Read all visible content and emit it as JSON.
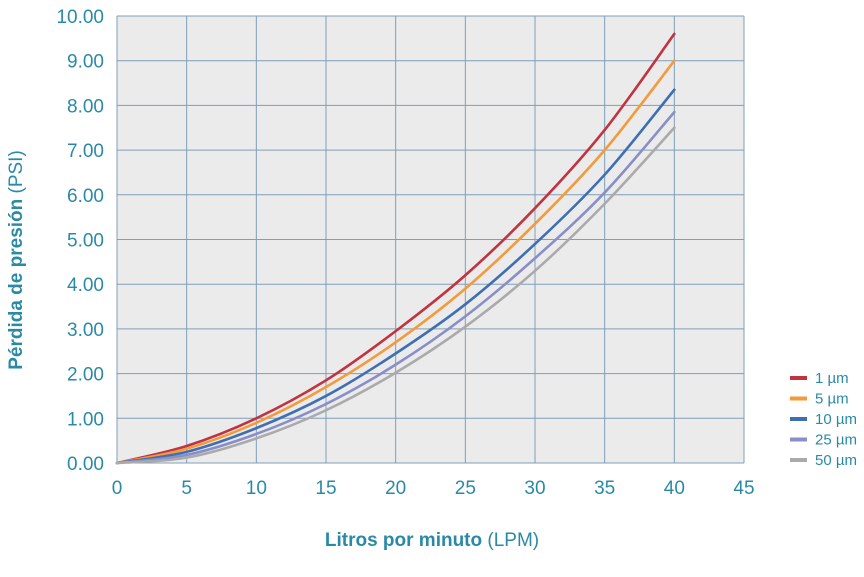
{
  "chart_data": {
    "type": "line",
    "title": "",
    "xlabel_bold": "Litros por minuto",
    "xlabel_unit": " (LPM)",
    "ylabel_bold": "Pérdida de presión",
    "ylabel_unit": " (PSI)",
    "xlim": [
      0,
      45
    ],
    "ylim": [
      0,
      10
    ],
    "xticks": [
      "0",
      "5",
      "10",
      "15",
      "20",
      "25",
      "30",
      "35",
      "40",
      "45"
    ],
    "yticks": [
      "0.00",
      "1.00",
      "2.00",
      "3.00",
      "4.00",
      "5.00",
      "6.00",
      "7.00",
      "8.00",
      "9.00",
      "10.00"
    ],
    "grid": true,
    "legend_position": "bottom-right",
    "x": [
      0,
      5,
      10,
      15,
      20,
      25,
      30,
      35,
      40
    ],
    "series": [
      {
        "name": "1 µm",
        "color": "#c0333f",
        "values": [
          0.0,
          0.38,
          1.0,
          1.85,
          2.95,
          4.2,
          5.7,
          7.45,
          9.6
        ]
      },
      {
        "name": "5 µm",
        "color": "#f39a3c",
        "values": [
          0.0,
          0.32,
          0.9,
          1.7,
          2.7,
          3.9,
          5.35,
          7.0,
          9.0
        ]
      },
      {
        "name": "10 µm",
        "color": "#3f6fb3",
        "values": [
          0.0,
          0.25,
          0.78,
          1.5,
          2.45,
          3.55,
          4.9,
          6.45,
          8.35
        ]
      },
      {
        "name": "25 µm",
        "color": "#8a8ec8",
        "values": [
          0.0,
          0.18,
          0.65,
          1.32,
          2.2,
          3.28,
          4.58,
          6.05,
          7.85
        ]
      },
      {
        "name": "50 µm",
        "color": "#aaaaaa",
        "values": [
          0.0,
          0.12,
          0.55,
          1.18,
          2.02,
          3.05,
          4.3,
          5.8,
          7.5
        ]
      }
    ]
  }
}
